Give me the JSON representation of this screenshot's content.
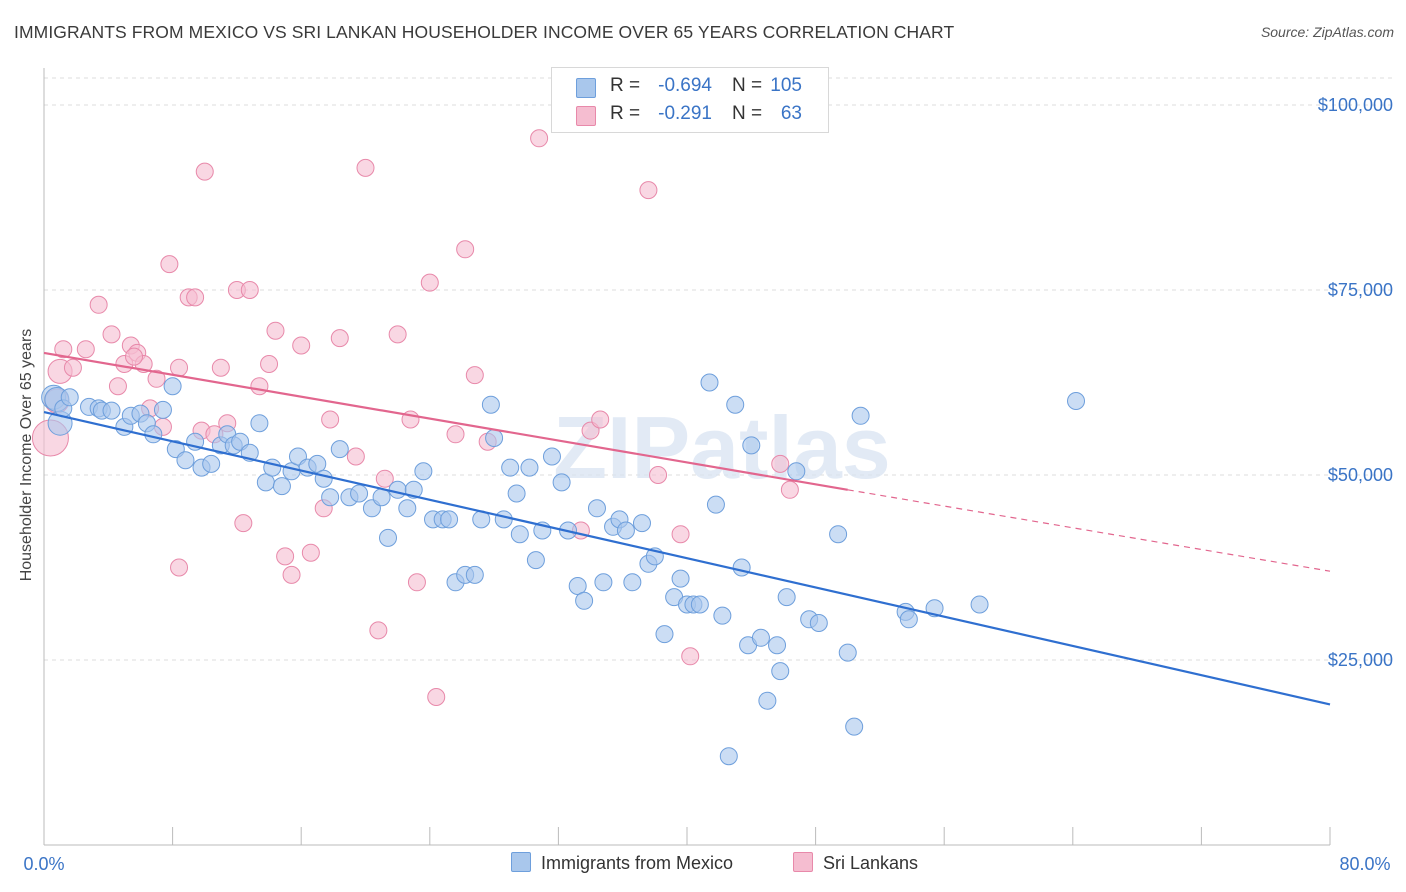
{
  "header": {
    "title": "IMMIGRANTS FROM MEXICO VS SRI LANKAN HOUSEHOLDER INCOME OVER 65 YEARS CORRELATION CHART",
    "source": "Source: ZipAtlas.com"
  },
  "legend": {
    "rows": [
      {
        "r_label": "R =",
        "r_value": "-0.694",
        "n_label": "N =",
        "n_value": "105"
      },
      {
        "r_label": "R =",
        "r_value": "-0.291",
        "n_label": "N =",
        "n_value": "63"
      }
    ]
  },
  "bottom_legend": {
    "series1": "Immigrants from Mexico",
    "series2": "Sri Lankans"
  },
  "watermark": "ZIPatlas",
  "colors": {
    "blue_fill": "#a9c7ec",
    "blue_stroke": "#6e9fdc",
    "blue_line": "#2f6fd0",
    "pink_fill": "#f5bdd0",
    "pink_stroke": "#e889aa",
    "pink_line": "#e2668e",
    "axis_text": "#3a74c6",
    "grid": "#dcdcdc"
  },
  "chart_data": {
    "type": "scatter",
    "title": "IMMIGRANTS FROM MEXICO VS SRI LANKAN HOUSEHOLDER INCOME OVER 65 YEARS CORRELATION CHART",
    "xlabel": "",
    "ylabel": "Householder Income Over 65 years",
    "xlim": [
      0,
      80
    ],
    "ylim": [
      0,
      105000
    ],
    "x_tick_labels": [
      "0.0%",
      "80.0%"
    ],
    "y_ticks": [
      25000,
      50000,
      75000,
      100000
    ],
    "y_tick_labels": [
      "$25,000",
      "$50,000",
      "$75,000",
      "$100,000"
    ],
    "grid": true,
    "legend_position": "top-center",
    "series": [
      {
        "name": "Immigrants from Mexico",
        "r": -0.694,
        "n": 105,
        "trend": {
          "x": [
            0,
            80
          ],
          "y": [
            58500,
            19000
          ]
        },
        "points": [
          [
            0.6,
            60500
          ],
          [
            0.8,
            60200
          ],
          [
            1.0,
            57000
          ],
          [
            1.2,
            59000
          ],
          [
            1.6,
            60500
          ],
          [
            2.8,
            59200
          ],
          [
            3.4,
            59000
          ],
          [
            3.6,
            58700
          ],
          [
            4.2,
            58700
          ],
          [
            5.0,
            56500
          ],
          [
            5.4,
            58000
          ],
          [
            6.0,
            58300
          ],
          [
            6.4,
            57000
          ],
          [
            6.8,
            55500
          ],
          [
            7.4,
            58800
          ],
          [
            8.0,
            62000
          ],
          [
            8.2,
            53500
          ],
          [
            8.8,
            52000
          ],
          [
            9.4,
            54500
          ],
          [
            9.8,
            51000
          ],
          [
            10.4,
            51500
          ],
          [
            11.0,
            54000
          ],
          [
            11.4,
            55500
          ],
          [
            11.8,
            54000
          ],
          [
            12.2,
            54500
          ],
          [
            12.8,
            53000
          ],
          [
            13.4,
            57000
          ],
          [
            13.8,
            49000
          ],
          [
            14.2,
            51000
          ],
          [
            14.8,
            48500
          ],
          [
            15.4,
            50500
          ],
          [
            15.8,
            52500
          ],
          [
            16.4,
            51000
          ],
          [
            17.0,
            51500
          ],
          [
            17.4,
            49500
          ],
          [
            17.8,
            47000
          ],
          [
            18.4,
            53500
          ],
          [
            19.0,
            47000
          ],
          [
            19.6,
            47500
          ],
          [
            20.4,
            45500
          ],
          [
            21.0,
            47000
          ],
          [
            21.4,
            41500
          ],
          [
            22.0,
            48000
          ],
          [
            22.6,
            45500
          ],
          [
            23.0,
            48000
          ],
          [
            23.6,
            50500
          ],
          [
            24.2,
            44000
          ],
          [
            24.8,
            44000
          ],
          [
            25.2,
            44000
          ],
          [
            25.6,
            35500
          ],
          [
            26.2,
            36500
          ],
          [
            26.8,
            36500
          ],
          [
            27.2,
            44000
          ],
          [
            27.8,
            59500
          ],
          [
            28.0,
            55000
          ],
          [
            28.6,
            44000
          ],
          [
            29.0,
            51000
          ],
          [
            29.4,
            47500
          ],
          [
            30.2,
            51000
          ],
          [
            30.6,
            38500
          ],
          [
            31.0,
            42500
          ],
          [
            31.6,
            52500
          ],
          [
            32.2,
            49000
          ],
          [
            32.6,
            42500
          ],
          [
            33.2,
            35000
          ],
          [
            33.6,
            33000
          ],
          [
            34.4,
            45500
          ],
          [
            34.8,
            35500
          ],
          [
            35.4,
            43000
          ],
          [
            35.8,
            44000
          ],
          [
            36.2,
            42500
          ],
          [
            36.6,
            35500
          ],
          [
            37.2,
            43500
          ],
          [
            37.6,
            38000
          ],
          [
            38.0,
            39000
          ],
          [
            38.6,
            28500
          ],
          [
            39.2,
            33500
          ],
          [
            39.6,
            36000
          ],
          [
            40.0,
            32500
          ],
          [
            40.4,
            32500
          ],
          [
            40.8,
            32500
          ],
          [
            41.4,
            62500
          ],
          [
            41.8,
            46000
          ],
          [
            42.2,
            31000
          ],
          [
            43.0,
            59500
          ],
          [
            43.4,
            37500
          ],
          [
            43.8,
            27000
          ],
          [
            44.0,
            54000
          ],
          [
            44.6,
            28000
          ],
          [
            45.0,
            19500
          ],
          [
            45.6,
            27000
          ],
          [
            45.8,
            23500
          ],
          [
            46.2,
            33500
          ],
          [
            46.8,
            50500
          ],
          [
            47.6,
            30500
          ],
          [
            48.2,
            30000
          ],
          [
            49.4,
            42000
          ],
          [
            50.0,
            26000
          ],
          [
            50.4,
            16000
          ],
          [
            50.8,
            58000
          ],
          [
            53.6,
            31500
          ],
          [
            53.8,
            30500
          ],
          [
            55.4,
            32000
          ],
          [
            58.2,
            32500
          ],
          [
            64.2,
            60000
          ],
          [
            42.6,
            12000
          ],
          [
            29.6,
            42000
          ]
        ]
      },
      {
        "name": "Sri Lankans",
        "r": -0.291,
        "n": 63,
        "trend": {
          "x": [
            0,
            50
          ],
          "y": [
            66500,
            48000
          ]
        },
        "trend_dashed": {
          "x": [
            50,
            80
          ],
          "y": [
            48000,
            37000
          ]
        },
        "points": [
          [
            0.4,
            55000
          ],
          [
            0.8,
            60000
          ],
          [
            1.0,
            64000
          ],
          [
            1.2,
            67000
          ],
          [
            1.8,
            64500
          ],
          [
            2.6,
            67000
          ],
          [
            3.4,
            73000
          ],
          [
            4.2,
            69000
          ],
          [
            4.6,
            62000
          ],
          [
            5.0,
            65000
          ],
          [
            5.4,
            67500
          ],
          [
            5.8,
            66500
          ],
          [
            6.2,
            65000
          ],
          [
            6.6,
            59000
          ],
          [
            7.0,
            63000
          ],
          [
            7.4,
            56500
          ],
          [
            7.8,
            78500
          ],
          [
            8.4,
            64500
          ],
          [
            9.0,
            74000
          ],
          [
            9.4,
            74000
          ],
          [
            9.8,
            56000
          ],
          [
            10.0,
            91000
          ],
          [
            10.6,
            55500
          ],
          [
            11.0,
            64500
          ],
          [
            11.4,
            57000
          ],
          [
            12.0,
            75000
          ],
          [
            12.4,
            43500
          ],
          [
            12.8,
            75000
          ],
          [
            13.4,
            62000
          ],
          [
            14.0,
            65000
          ],
          [
            14.4,
            69500
          ],
          [
            15.0,
            39000
          ],
          [
            15.4,
            36500
          ],
          [
            16.0,
            67500
          ],
          [
            16.6,
            39500
          ],
          [
            17.4,
            45500
          ],
          [
            17.8,
            57500
          ],
          [
            18.4,
            68500
          ],
          [
            19.4,
            52500
          ],
          [
            20.0,
            91500
          ],
          [
            20.8,
            29000
          ],
          [
            21.2,
            49500
          ],
          [
            22.0,
            69000
          ],
          [
            22.8,
            57500
          ],
          [
            23.2,
            35500
          ],
          [
            24.0,
            76000
          ],
          [
            24.4,
            20000
          ],
          [
            25.6,
            55500
          ],
          [
            26.2,
            80500
          ],
          [
            26.8,
            63500
          ],
          [
            27.6,
            54500
          ],
          [
            30.8,
            95500
          ],
          [
            33.4,
            42500
          ],
          [
            34.0,
            56000
          ],
          [
            34.6,
            57500
          ],
          [
            37.6,
            88500
          ],
          [
            38.2,
            50000
          ],
          [
            39.6,
            42000
          ],
          [
            40.2,
            25500
          ],
          [
            45.8,
            51500
          ],
          [
            46.4,
            48000
          ],
          [
            5.6,
            66000
          ],
          [
            8.4,
            37500
          ]
        ]
      }
    ]
  }
}
